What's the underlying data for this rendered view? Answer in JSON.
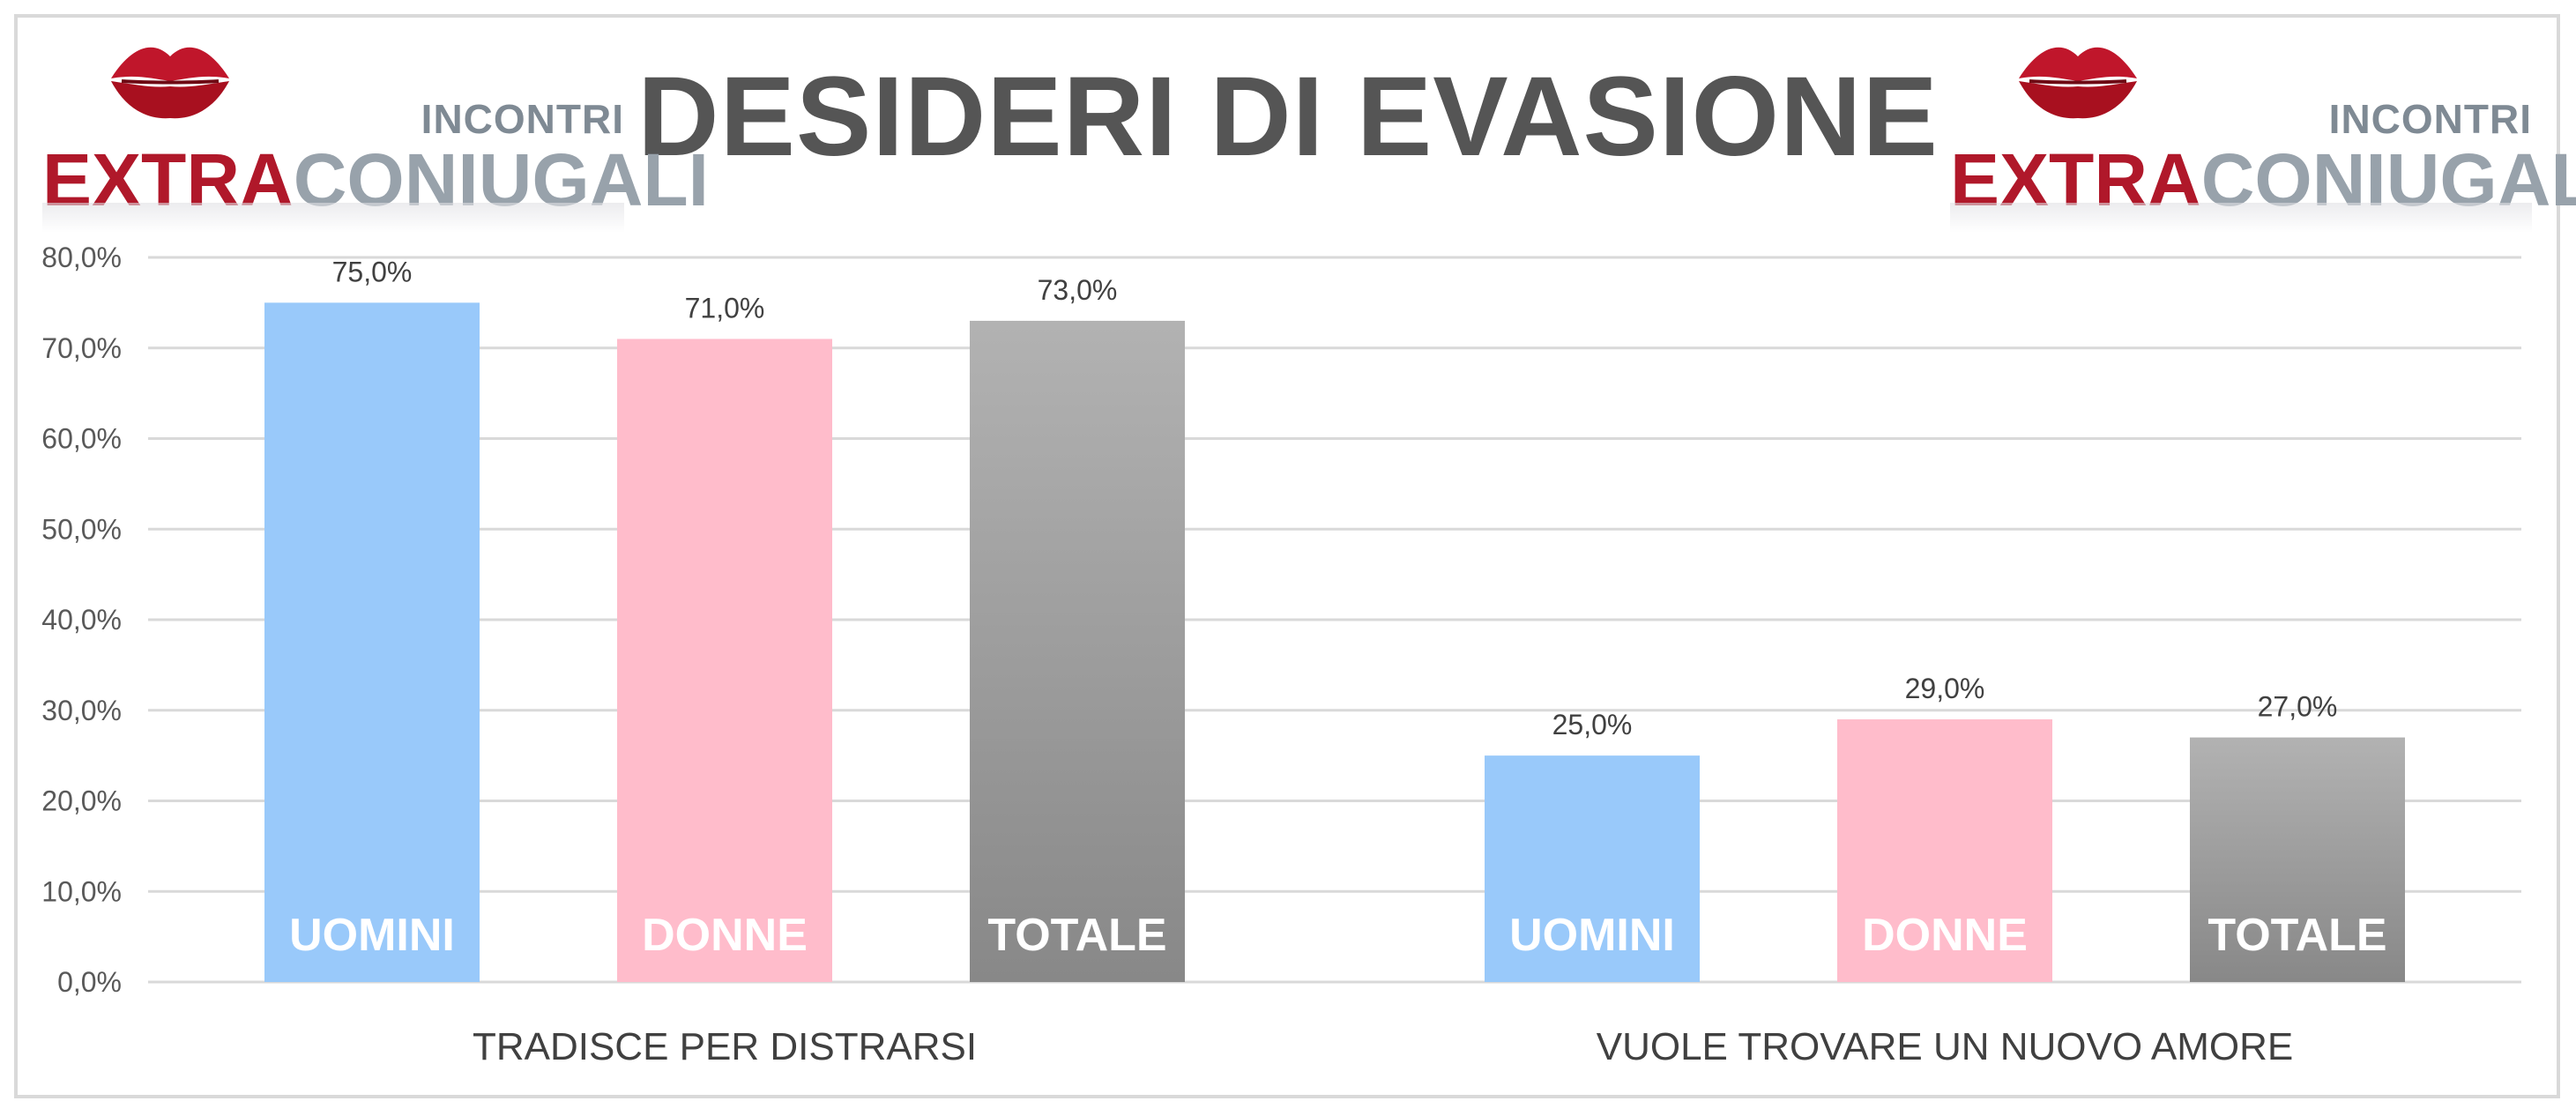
{
  "header": {
    "title": "DESIDERI DI EVASIONE",
    "logo": {
      "tag": "INCONTRI",
      "word_a": "EXTRA",
      "word_b": "CONIUGALI"
    }
  },
  "colors": {
    "uomini": "#99c9fa",
    "donne": "#ffbccb",
    "totale": "#999999",
    "grid": "#d9d9d9",
    "title": "#555555",
    "brand_red": "#b0182a"
  },
  "chart_data": {
    "type": "bar",
    "title": "DESIDERI DI EVASIONE",
    "xlabel": "",
    "ylabel": "",
    "ylim": [
      0,
      80
    ],
    "yticks": [
      "0,0%",
      "10,0%",
      "20,0%",
      "30,0%",
      "40,0%",
      "50,0%",
      "60,0%",
      "70,0%",
      "80,0%"
    ],
    "grid": true,
    "legend": "none",
    "categories": [
      "TRADISCE PER DISTRARSI",
      "VUOLE TROVARE UN NUOVO AMORE"
    ],
    "series": [
      {
        "name": "UOMINI",
        "values": [
          75.0,
          25.0
        ],
        "labels": [
          "75,0%",
          "25,0%"
        ],
        "color": "#99c9fa"
      },
      {
        "name": "DONNE",
        "values": [
          71.0,
          29.0
        ],
        "labels": [
          "71,0%",
          "29,0%"
        ],
        "color": "#ffbccb"
      },
      {
        "name": "TOTALE",
        "values": [
          73.0,
          27.0
        ],
        "labels": [
          "73,0%",
          "27,0%"
        ],
        "color": "#999999"
      }
    ]
  }
}
